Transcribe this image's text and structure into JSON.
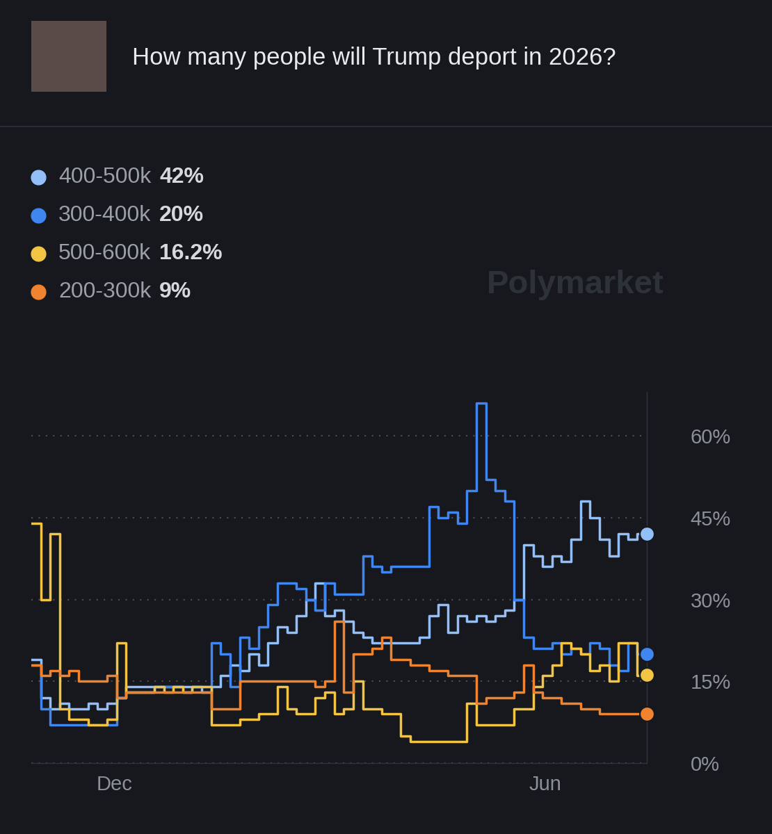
{
  "chart_data": {
    "type": "line",
    "title": "How many people will Trump deport in 2026?",
    "watermark": "Polymarket",
    "x": [
      0,
      4,
      8,
      12,
      16,
      20,
      24,
      28,
      32,
      36,
      40,
      44,
      48,
      52,
      56,
      60,
      64,
      68,
      72,
      76,
      80,
      84,
      88,
      92,
      96,
      100,
      104,
      108,
      112,
      116,
      120,
      124,
      128,
      132,
      136,
      140,
      144,
      148,
      152,
      156,
      160,
      164,
      168,
      172,
      176,
      180,
      184,
      188,
      192,
      196,
      200,
      204,
      208,
      212,
      216,
      220,
      224,
      228,
      232,
      236,
      240,
      244,
      248,
      252,
      256,
      260
    ],
    "xlim": [
      0,
      260
    ],
    "xticks": [
      {
        "value": 35,
        "label": "Dec"
      },
      {
        "value": 217,
        "label": "Jun"
      }
    ],
    "ylim": [
      0,
      68
    ],
    "yticks": [
      {
        "value": 0,
        "label": "0%"
      },
      {
        "value": 15,
        "label": "15%"
      },
      {
        "value": 30,
        "label": "30%"
      },
      {
        "value": 45,
        "label": "45%"
      },
      {
        "value": 60,
        "label": "60%"
      }
    ],
    "grid": true,
    "series": [
      {
        "name": "400-500k",
        "color": "#93bff8",
        "current": {
          "value": 42,
          "label": "42%"
        },
        "values": [
          19,
          12,
          10,
          11,
          10,
          10,
          11,
          10,
          11,
          12,
          14,
          14,
          14,
          14,
          14,
          14,
          14,
          14,
          13,
          14,
          16,
          18,
          17,
          20,
          18,
          22,
          25,
          24,
          27,
          30,
          33,
          27,
          28,
          26,
          24,
          23,
          22,
          22,
          22,
          22,
          22,
          23,
          27,
          29,
          24,
          27,
          26,
          27,
          26,
          27,
          28,
          30,
          40,
          38,
          36,
          38,
          37,
          41,
          48,
          45,
          41,
          38,
          42,
          41,
          42,
          42
        ]
      },
      {
        "name": "300-400k",
        "color": "#3f86f0",
        "current": {
          "value": 20,
          "label": "20%"
        },
        "values": [
          18,
          10,
          7,
          7,
          7,
          7,
          7,
          7,
          7,
          12,
          13,
          13,
          13,
          14,
          14,
          14,
          13,
          14,
          14,
          22,
          20,
          14,
          23,
          21,
          25,
          29,
          33,
          33,
          32,
          30,
          28,
          33,
          31,
          31,
          31,
          38,
          36,
          35,
          36,
          36,
          36,
          36,
          47,
          45,
          46,
          44,
          50,
          66,
          52,
          50,
          48,
          30,
          23,
          21,
          21,
          22,
          20,
          21,
          20,
          22,
          21,
          18,
          17,
          22,
          20,
          20
        ]
      },
      {
        "name": "500-600k",
        "color": "#f3c443",
        "current": {
          "value": 16.2,
          "label": "16.2%"
        },
        "values": [
          44,
          30,
          42,
          10,
          8,
          8,
          7,
          7,
          8,
          22,
          13,
          13,
          13,
          14,
          13,
          14,
          13,
          14,
          14,
          7,
          7,
          7,
          8,
          8,
          9,
          9,
          14,
          10,
          9,
          9,
          12,
          13,
          9,
          10,
          15,
          10,
          10,
          9,
          9,
          5,
          4,
          4,
          4,
          4,
          4,
          4,
          11,
          7,
          7,
          7,
          7,
          10,
          10,
          14,
          16,
          18,
          22,
          21,
          20,
          17,
          18,
          15,
          22,
          22,
          16,
          16.2
        ]
      },
      {
        "name": "200-300k",
        "color": "#ef8330",
        "current": {
          "value": 9,
          "label": "9%"
        },
        "values": [
          18,
          16,
          17,
          16,
          17,
          15,
          15,
          15,
          16,
          12,
          13,
          13,
          13,
          13,
          13,
          13,
          13,
          13,
          13,
          10,
          10,
          10,
          15,
          15,
          15,
          15,
          15,
          15,
          15,
          15,
          14,
          15,
          26,
          13,
          20,
          20,
          21,
          23,
          19,
          19,
          18,
          18,
          17,
          17,
          16,
          16,
          16,
          11,
          12,
          12,
          12,
          13,
          18,
          13,
          12,
          12,
          11,
          11,
          10,
          10,
          9,
          9,
          9,
          9,
          9,
          9
        ]
      }
    ]
  }
}
